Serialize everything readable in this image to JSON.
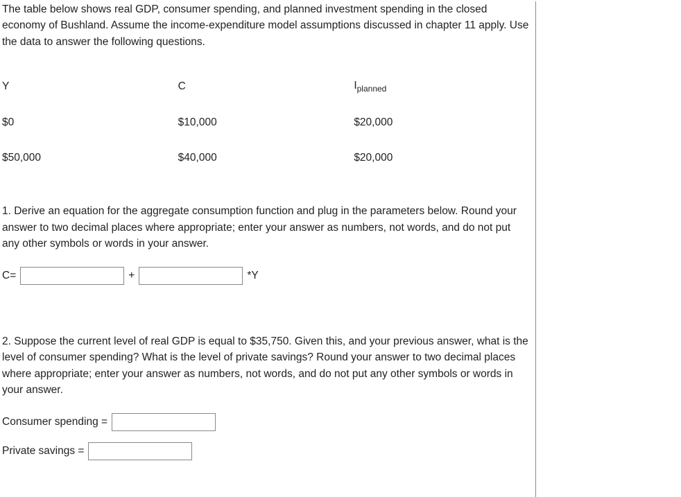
{
  "intro": "The table below shows real GDP, consumer spending, and planned investment spending in the closed economy of Bushland. Assume the income-expenditure model assumptions discussed in chapter 11 apply. Use the data to answer the following questions.",
  "table": {
    "columns": [
      "Y",
      "C",
      "I_planned"
    ],
    "col_headers": {
      "y": "Y",
      "c": "C",
      "i_prefix": "I",
      "i_sub": "planned"
    },
    "rows": [
      {
        "y": "$0",
        "c": "$10,000",
        "i": "$20,000"
      },
      {
        "y": "$50,000",
        "c": "$40,000",
        "i": "$20,000"
      }
    ]
  },
  "q1": {
    "text": "1. Derive an equation for the aggregate consumption function and plug in the parameters below. Round your answer to two decimal places where appropriate; enter your answer as numbers, not words, and do not put any other symbols or words in your answer.",
    "lhs": "C=",
    "plus": "+",
    "suffix": "*Y"
  },
  "q2": {
    "text": "2. Suppose the current level of real GDP is equal to $35,750. Given this, and your previous answer, what is the level of consumer spending? What is the level of private savings? Round your answer to two decimal places where appropriate; enter your answer as numbers, not words, and do not put any other symbols or words in your answer.",
    "cs_label": "Consumer spending =",
    "ps_label": "Private savings ="
  }
}
